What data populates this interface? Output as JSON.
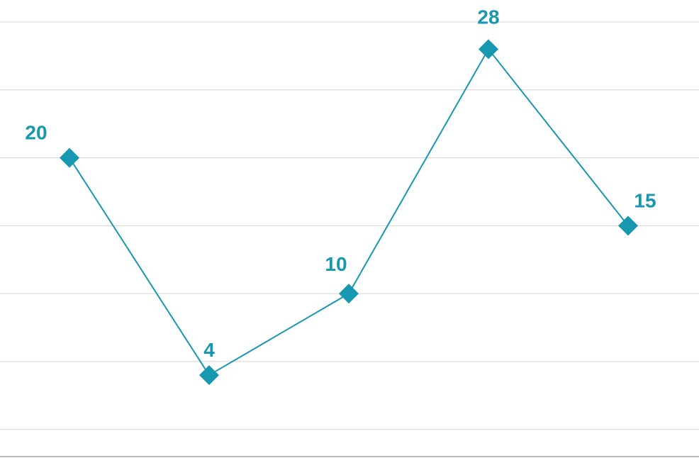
{
  "chart_data": {
    "type": "line",
    "x": [
      1,
      2,
      3,
      4,
      5
    ],
    "series": [
      {
        "values": [
          20,
          4,
          10,
          28,
          15
        ],
        "labels": [
          "20",
          "4",
          "10",
          "28",
          "15"
        ],
        "color": "#1797b0",
        "marker": "diamond"
      }
    ],
    "title": "",
    "xlabel": "",
    "ylabel": "",
    "ylim": [
      -2,
      30
    ],
    "grid": true,
    "legend": "none"
  }
}
